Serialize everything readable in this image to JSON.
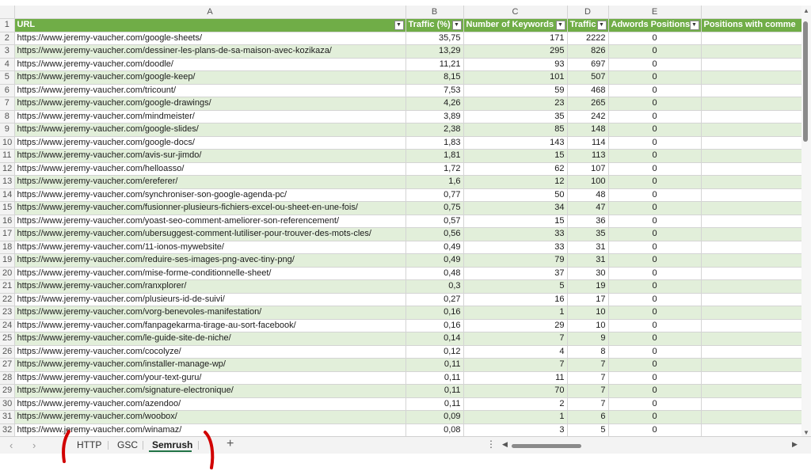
{
  "columns": {
    "letters": [
      "A",
      "B",
      "C",
      "D",
      "E",
      ""
    ],
    "headers": [
      "URL",
      "Traffic (%)",
      "Number of Keywords",
      "Traffic",
      "Adwords Positions",
      "Positions with comme"
    ]
  },
  "filter_icon": "dropdown-filter-icon",
  "rows": [
    {
      "num": "2",
      "url": "https://www.jeremy-vaucher.com/google-sheets/",
      "traffic_pct": "35,75",
      "keywords": "171",
      "traffic": "2222",
      "adwords": "0"
    },
    {
      "num": "3",
      "url": "https://www.jeremy-vaucher.com/dessiner-les-plans-de-sa-maison-avec-kozikaza/",
      "traffic_pct": "13,29",
      "keywords": "295",
      "traffic": "826",
      "adwords": "0"
    },
    {
      "num": "4",
      "url": "https://www.jeremy-vaucher.com/doodle/",
      "traffic_pct": "11,21",
      "keywords": "93",
      "traffic": "697",
      "adwords": "0"
    },
    {
      "num": "5",
      "url": "https://www.jeremy-vaucher.com/google-keep/",
      "traffic_pct": "8,15",
      "keywords": "101",
      "traffic": "507",
      "adwords": "0"
    },
    {
      "num": "6",
      "url": "https://www.jeremy-vaucher.com/tricount/",
      "traffic_pct": "7,53",
      "keywords": "59",
      "traffic": "468",
      "adwords": "0"
    },
    {
      "num": "7",
      "url": "https://www.jeremy-vaucher.com/google-drawings/",
      "traffic_pct": "4,26",
      "keywords": "23",
      "traffic": "265",
      "adwords": "0"
    },
    {
      "num": "8",
      "url": "https://www.jeremy-vaucher.com/mindmeister/",
      "traffic_pct": "3,89",
      "keywords": "35",
      "traffic": "242",
      "adwords": "0"
    },
    {
      "num": "9",
      "url": "https://www.jeremy-vaucher.com/google-slides/",
      "traffic_pct": "2,38",
      "keywords": "85",
      "traffic": "148",
      "adwords": "0"
    },
    {
      "num": "10",
      "url": "https://www.jeremy-vaucher.com/google-docs/",
      "traffic_pct": "1,83",
      "keywords": "143",
      "traffic": "114",
      "adwords": "0"
    },
    {
      "num": "11",
      "url": "https://www.jeremy-vaucher.com/avis-sur-jimdo/",
      "traffic_pct": "1,81",
      "keywords": "15",
      "traffic": "113",
      "adwords": "0"
    },
    {
      "num": "12",
      "url": "https://www.jeremy-vaucher.com/helloasso/",
      "traffic_pct": "1,72",
      "keywords": "62",
      "traffic": "107",
      "adwords": "0"
    },
    {
      "num": "13",
      "url": "https://www.jeremy-vaucher.com/ereferer/",
      "traffic_pct": "1,6",
      "keywords": "12",
      "traffic": "100",
      "adwords": "0"
    },
    {
      "num": "14",
      "url": "https://www.jeremy-vaucher.com/synchroniser-son-google-agenda-pc/",
      "traffic_pct": "0,77",
      "keywords": "50",
      "traffic": "48",
      "adwords": "0"
    },
    {
      "num": "15",
      "url": "https://www.jeremy-vaucher.com/fusionner-plusieurs-fichiers-excel-ou-sheet-en-une-fois/",
      "traffic_pct": "0,75",
      "keywords": "34",
      "traffic": "47",
      "adwords": "0"
    },
    {
      "num": "16",
      "url": "https://www.jeremy-vaucher.com/yoast-seo-comment-ameliorer-son-referencement/",
      "traffic_pct": "0,57",
      "keywords": "15",
      "traffic": "36",
      "adwords": "0"
    },
    {
      "num": "17",
      "url": "https://www.jeremy-vaucher.com/ubersuggest-comment-lutiliser-pour-trouver-des-mots-cles/",
      "traffic_pct": "0,56",
      "keywords": "33",
      "traffic": "35",
      "adwords": "0"
    },
    {
      "num": "18",
      "url": "https://www.jeremy-vaucher.com/11-ionos-mywebsite/",
      "traffic_pct": "0,49",
      "keywords": "33",
      "traffic": "31",
      "adwords": "0"
    },
    {
      "num": "19",
      "url": "https://www.jeremy-vaucher.com/reduire-ses-images-png-avec-tiny-png/",
      "traffic_pct": "0,49",
      "keywords": "79",
      "traffic": "31",
      "adwords": "0"
    },
    {
      "num": "20",
      "url": "https://www.jeremy-vaucher.com/mise-forme-conditionnelle-sheet/",
      "traffic_pct": "0,48",
      "keywords": "37",
      "traffic": "30",
      "adwords": "0"
    },
    {
      "num": "21",
      "url": "https://www.jeremy-vaucher.com/ranxplorer/",
      "traffic_pct": "0,3",
      "keywords": "5",
      "traffic": "19",
      "adwords": "0"
    },
    {
      "num": "22",
      "url": "https://www.jeremy-vaucher.com/plusieurs-id-de-suivi/",
      "traffic_pct": "0,27",
      "keywords": "16",
      "traffic": "17",
      "adwords": "0"
    },
    {
      "num": "23",
      "url": "https://www.jeremy-vaucher.com/vorg-benevoles-manifestation/",
      "traffic_pct": "0,16",
      "keywords": "1",
      "traffic": "10",
      "adwords": "0"
    },
    {
      "num": "24",
      "url": "https://www.jeremy-vaucher.com/fanpagekarma-tirage-au-sort-facebook/",
      "traffic_pct": "0,16",
      "keywords": "29",
      "traffic": "10",
      "adwords": "0"
    },
    {
      "num": "25",
      "url": "https://www.jeremy-vaucher.com/le-guide-site-de-niche/",
      "traffic_pct": "0,14",
      "keywords": "7",
      "traffic": "9",
      "adwords": "0"
    },
    {
      "num": "26",
      "url": "https://www.jeremy-vaucher.com/cocolyze/",
      "traffic_pct": "0,12",
      "keywords": "4",
      "traffic": "8",
      "adwords": "0"
    },
    {
      "num": "27",
      "url": "https://www.jeremy-vaucher.com/installer-manage-wp/",
      "traffic_pct": "0,11",
      "keywords": "7",
      "traffic": "7",
      "adwords": "0"
    },
    {
      "num": "28",
      "url": "https://www.jeremy-vaucher.com/your-text-guru/",
      "traffic_pct": "0,11",
      "keywords": "11",
      "traffic": "7",
      "adwords": "0"
    },
    {
      "num": "29",
      "url": "https://www.jeremy-vaucher.com/signature-electronique/",
      "traffic_pct": "0,11",
      "keywords": "70",
      "traffic": "7",
      "adwords": "0"
    },
    {
      "num": "30",
      "url": "https://www.jeremy-vaucher.com/azendoo/",
      "traffic_pct": "0,11",
      "keywords": "2",
      "traffic": "7",
      "adwords": "0"
    },
    {
      "num": "31",
      "url": "https://www.jeremy-vaucher.com/woobox/",
      "traffic_pct": "0,09",
      "keywords": "1",
      "traffic": "6",
      "adwords": "0"
    },
    {
      "num": "32",
      "url": "https://www.jeremy-vaucher.com/winamaz/",
      "traffic_pct": "0,08",
      "keywords": "3",
      "traffic": "5",
      "adwords": "0"
    }
  ],
  "header_row_num": "1",
  "sheet_tabs": {
    "tabs": [
      "HTTP",
      "GSC",
      "Semrush"
    ],
    "active": "Semrush",
    "add_label": "+",
    "nav_prev": "‹",
    "nav_next": "›",
    "more": "⋮",
    "scroll_left": "◀",
    "scroll_right": "▶"
  },
  "colors": {
    "header_green": "#70ad47",
    "band_green": "#e2efda",
    "annotation_red": "#d10000"
  }
}
